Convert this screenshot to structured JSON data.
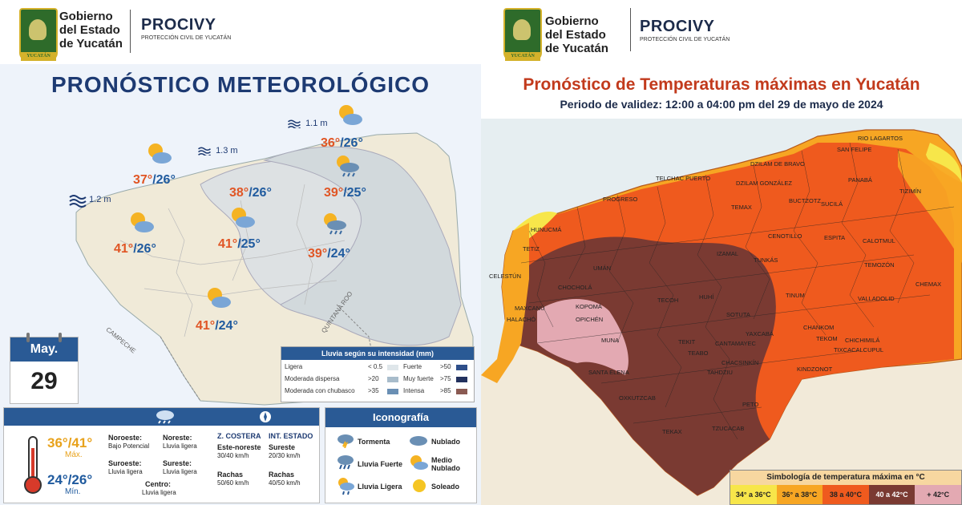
{
  "header": {
    "seal_text": "YUCATÁN",
    "gov_line1": "Gobierno",
    "gov_line2": "del Estado",
    "gov_line3": "de Yucatán",
    "procivy": "PROCIVY",
    "procivy_sub": "PROTECCIÓN CIVIL DE YUCATÁN"
  },
  "left": {
    "title": "PRONÓSTICO METEOROLÓGICO",
    "waves": [
      {
        "label": "1.2 m"
      },
      {
        "label": "1.3 m"
      },
      {
        "label": "1.1 m"
      }
    ],
    "temps": [
      {
        "max": "37°",
        "min": "/26°",
        "icon": "sun-cloud-icon"
      },
      {
        "max": "38°",
        "min": "/26°",
        "icon": "none"
      },
      {
        "max": "36°",
        "min": "/26°",
        "icon": "sun-cloud-icon"
      },
      {
        "max": "39°",
        "min": "/25°",
        "icon": "sun-rain-icon"
      },
      {
        "max": "41°",
        "min": "/26°",
        "icon": "sun-cloud-icon"
      },
      {
        "max": "41°",
        "min": "/25°",
        "icon": "sun-cloud-icon"
      },
      {
        "max": "39°",
        "min": "/24°",
        "icon": "sun-rain-icon"
      },
      {
        "max": "41°",
        "min": "/24°",
        "icon": "sun-cloud-icon"
      }
    ],
    "map_labels": {
      "campeche": "CAMPECHE",
      "quintana_roo": "QUINTANA ROO"
    },
    "calendar": {
      "month": "May.",
      "day": "29"
    },
    "rain_legend": {
      "title": "Lluvia según su intensidad (mm)",
      "items": [
        {
          "label": "Ligera",
          "value": "< 0.5",
          "color": "#dfe6ea"
        },
        {
          "label": "Moderada dispersa",
          "value": ">20",
          "color": "#a8bccb"
        },
        {
          "label": "Moderada con chubasco",
          "value": ">35",
          "color": "#6a8fb4"
        },
        {
          "label": "Fuerte",
          "value": ">50",
          "color": "#2e4f8a"
        },
        {
          "label": "Muy fuerte",
          "value": ">75",
          "color": "#22315e"
        },
        {
          "label": "Intensa",
          "value": ">85",
          "color": "#8a5a52"
        }
      ]
    },
    "summary": {
      "temp_range": "36°/41°",
      "max_label": "Máx.",
      "min_range": "24°/26°",
      "min_label": "Mín.",
      "winds": [
        {
          "title": "Noroeste:",
          "desc": "Bajo Potencial"
        },
        {
          "title": "Noreste:",
          "desc": "Lluvia ligera"
        },
        {
          "title": "Suroeste:",
          "desc": "Lluvia ligera"
        },
        {
          "title": "Sureste:",
          "desc": "Lluvia ligera"
        },
        {
          "title": "Centro:",
          "desc": "Lluvia ligera"
        }
      ],
      "coast_title": "Z. COSTERA",
      "int_title": "INT. ESTADO",
      "coast_wind": "Este-noreste",
      "coast_speed": "30/40 km/h",
      "int_wind": "Sureste",
      "int_speed": "20/30 km/h",
      "gust_label": "Rachas",
      "coast_gust": "50/60 km/h",
      "int_gust": "40/50 km/h"
    },
    "iconography": {
      "title": "Iconografía",
      "items": [
        {
          "label": "Tormenta",
          "icon": "storm-icon"
        },
        {
          "label": "Nublado",
          "icon": "cloud-icon"
        },
        {
          "label": "Lluvia Fuerte",
          "icon": "heavy-rain-icon"
        },
        {
          "label": "Medio Nublado",
          "icon": "partly-cloudy-icon"
        },
        {
          "label": "Lluvia Ligera",
          "icon": "light-rain-icon"
        },
        {
          "label": "Soleado",
          "icon": "sun-icon"
        }
      ]
    }
  },
  "right": {
    "title": "Pronóstico de Temperaturas máximas en Yucatán",
    "subtitle": "Periodo de validez: 12:00 a 04:00 pm del 29 de mayo de 2024",
    "places": [
      "RIO LAGARTOS",
      "SAN FELIPE",
      "TELCHAC PUERTO",
      "DZILAM DE BRAVO",
      "PROGRESO",
      "DZILAM GONZÁLEZ",
      "TIZIMÍN",
      "PANABÁ",
      "BUCTZOTZ",
      "SUCILÁ",
      "HUNUCMÁ",
      "TEMAX",
      "CENOTILLO",
      "ESPITA",
      "CALOTMUL",
      "TETIZ",
      "CELESTÚN",
      "IZAMAL",
      "TUNKÁS",
      "TEMOZÓN",
      "CHEMAX",
      "UMÁN",
      "TINUM",
      "VALLADOLID",
      "MAXCANÚ",
      "KOPOMÁ",
      "OPICHÉN",
      "TECOH",
      "HUHÍ",
      "SOTUTA",
      "HALACHÓ",
      "MUNA",
      "TEKIT",
      "YAXCABÁ",
      "CHANKOM",
      "TEKOM",
      "CHICHIMILÁ",
      "TIXCACALCUPUL",
      "SANTA ELENA",
      "CHACSINKÍN",
      "KINDZONOT",
      "OXKUTZCAB",
      "PETO",
      "TEKAX",
      "TZUCACAB",
      "CHOCHOLÁ",
      "TEABO",
      "CANTAMAYEC",
      "TAHDZIU"
    ],
    "legend": {
      "title": "Simbología de temperatura máxima en °C",
      "cells": [
        {
          "label": "34° a 36°C",
          "color": "#f7e64a"
        },
        {
          "label": "36° a 38°C",
          "color": "#f7a623"
        },
        {
          "label": "38 a 40°C",
          "color": "#ef5a1e"
        },
        {
          "label": "40 a 42°C",
          "color": "#7a3a32"
        },
        {
          "label": "+ 42°C",
          "color": "#e3a9b2"
        }
      ]
    }
  },
  "colors": {
    "title_blue": "#1d3a72",
    "max_orange": "#e05524",
    "min_blue": "#1f5a9e",
    "right_title_red": "#c23a1c"
  }
}
